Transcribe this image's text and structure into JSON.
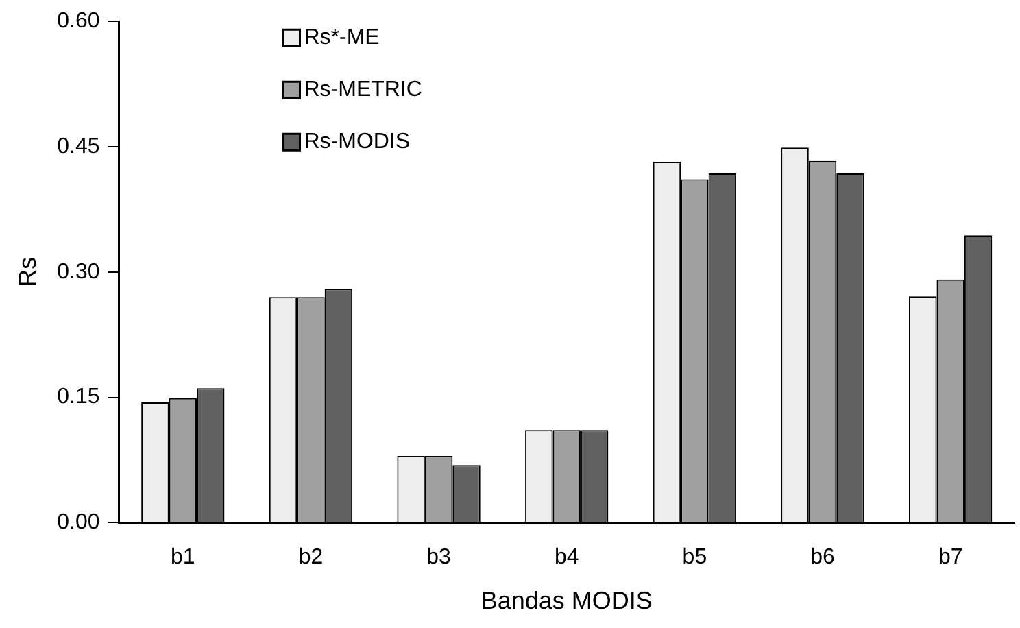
{
  "chart_data": {
    "type": "bar",
    "xlabel": "Bandas MODIS",
    "ylabel": "Rs",
    "categories": [
      "b1",
      "b2",
      "b3",
      "b4",
      "b5",
      "b6",
      "b7"
    ],
    "series": [
      {
        "name": "Rs*-ME",
        "color": "#eeeeee",
        "values": [
          0.144,
          0.27,
          0.08,
          0.111,
          0.432,
          0.449,
          0.271
        ]
      },
      {
        "name": "Rs-METRIC",
        "color": "#a0a0a0",
        "values": [
          0.149,
          0.27,
          0.08,
          0.111,
          0.411,
          0.433,
          0.291
        ]
      },
      {
        "name": "Rs-MODIS",
        "color": "#606060",
        "values": [
          0.161,
          0.28,
          0.069,
          0.111,
          0.418,
          0.418,
          0.344
        ]
      }
    ],
    "ylim": [
      0,
      0.6
    ],
    "yticks": [
      {
        "value": 0,
        "label": "0.00"
      },
      {
        "value": 0.15,
        "label": "0.15"
      },
      {
        "value": 0.3,
        "label": "0.30"
      },
      {
        "value": 0.45,
        "label": "0.45"
      },
      {
        "value": 0.6,
        "label": "0.60"
      }
    ],
    "grid": false,
    "legend": "top left"
  }
}
